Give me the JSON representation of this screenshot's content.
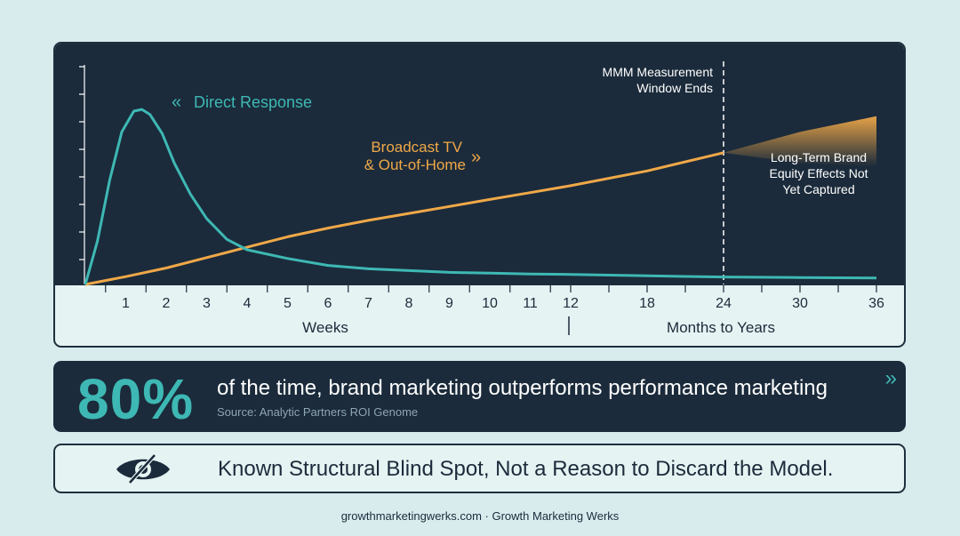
{
  "chart_data": {
    "type": "line",
    "title": "",
    "x_ticks": [
      "1",
      "2",
      "3",
      "4",
      "5",
      "6",
      "7",
      "8",
      "9",
      "10",
      "11",
      "12",
      "18",
      "24",
      "30",
      "36"
    ],
    "x_group_labels": [
      "Weeks",
      "Months to Years"
    ],
    "series": [
      {
        "name": "Direct Response",
        "color": "#3eb8b4",
        "points": [
          [
            0,
            0
          ],
          [
            0.3,
            25
          ],
          [
            0.6,
            60
          ],
          [
            0.9,
            88
          ],
          [
            1.2,
            100
          ],
          [
            1.4,
            101
          ],
          [
            1.6,
            98
          ],
          [
            1.9,
            87
          ],
          [
            2.2,
            70
          ],
          [
            2.6,
            52
          ],
          [
            3,
            38
          ],
          [
            3.5,
            26
          ],
          [
            4,
            20
          ],
          [
            5,
            15
          ],
          [
            6,
            11
          ],
          [
            7,
            9
          ],
          [
            8,
            8
          ],
          [
            9,
            7
          ],
          [
            10,
            6.5
          ],
          [
            11,
            6
          ],
          [
            12,
            5.8
          ],
          [
            18,
            5
          ],
          [
            24,
            4.3
          ],
          [
            30,
            4
          ],
          [
            36,
            3.7
          ]
        ]
      },
      {
        "name": "Broadcast TV & Out-of-Home",
        "color": "#f0a848",
        "points": [
          [
            0,
            0
          ],
          [
            1,
            4.5
          ],
          [
            2,
            9.5
          ],
          [
            3,
            15.5
          ],
          [
            4,
            21.5
          ],
          [
            5,
            27.5
          ],
          [
            6,
            32.5
          ],
          [
            7,
            37
          ],
          [
            8,
            41
          ],
          [
            9,
            45
          ],
          [
            10,
            49
          ],
          [
            11,
            53
          ],
          [
            12,
            57
          ],
          [
            18,
            65.5
          ],
          [
            24,
            76
          ]
        ]
      }
    ],
    "projection": {
      "label": "Long-Term Brand Equity Effects Not Yet Captured",
      "upper": [
        [
          24,
          76
        ],
        [
          30,
          88
        ],
        [
          36,
          97
        ]
      ],
      "lower": [
        [
          24,
          76
        ],
        [
          30,
          70
        ],
        [
          36,
          68
        ]
      ]
    },
    "annotation": {
      "label_line1": "MMM Measurement",
      "label_line2": "Window Ends",
      "x": 24
    },
    "direct_response_label": "Direct Response",
    "broadcast_label_line1": "Broadcast TV",
    "broadcast_label_line2": "& Out-of-Home",
    "projection_label_line1": "Long-Term Brand",
    "projection_label_line2": "Equity Effects Not",
    "projection_label_line3": "Yet Captured",
    "colors": {
      "plot_bg": "#1b2b3b",
      "teal": "#3eb8b4",
      "orange": "#f0a848"
    }
  },
  "stat": {
    "value": "80%",
    "text": "of the time, brand marketing outperforms performance marketing",
    "source": "Source: Analytic Partners ROI Genome",
    "chevron": "»"
  },
  "callout": {
    "icon": "eye-slash-icon",
    "text": "Known Structural Blind Spot, Not a Reason to Discard the Model."
  },
  "footer": "growthmarketingwerks.com · Growth Marketing Werks"
}
